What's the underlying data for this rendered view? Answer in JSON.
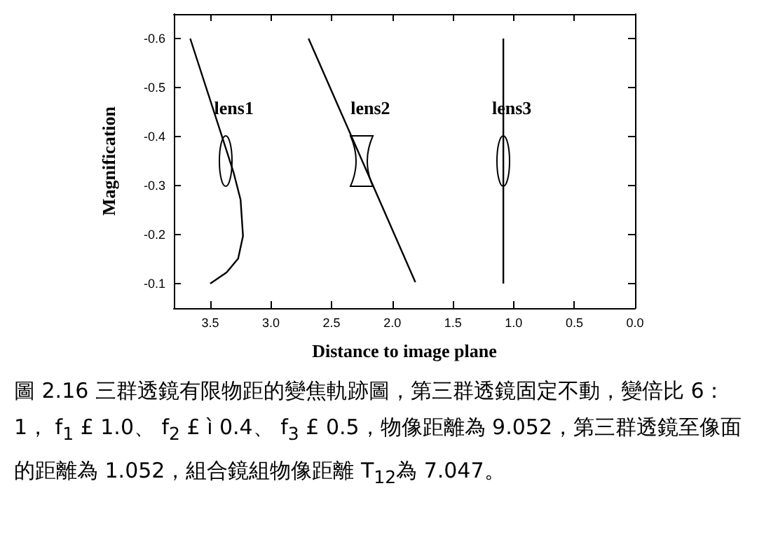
{
  "chart_data": {
    "type": "line",
    "xlabel": "Distance to image plane",
    "ylabel": "Magnification",
    "series": [
      {
        "color": "#000000",
        "x": [
          3.665,
          3.404,
          3.308,
          3.25,
          3.23,
          3.27,
          3.365,
          3.5
        ],
        "values": [
          -0.6,
          -0.401,
          -0.327,
          -0.271,
          -0.197,
          -0.151,
          -0.123,
          -0.1
        ]
      },
      {
        "color": "#000000",
        "x": [
          2.69,
          1.81
        ],
        "values": [
          -0.6,
          -0.103
        ]
      },
      {
        "color": "#000000",
        "x": [
          1.085,
          1.085
        ],
        "values": [
          -0.6,
          -0.1
        ]
      }
    ],
    "xlim": [
      3.8,
      0
    ],
    "xticks": [
      {
        "value": 3.5,
        "label": "3.5"
      },
      {
        "value": 3,
        "label": "3.0"
      },
      {
        "value": 2.5,
        "label": "2.5"
      },
      {
        "value": 2,
        "label": "2.0"
      },
      {
        "value": 1.5,
        "label": "1.5"
      },
      {
        "value": 1,
        "label": "1.0"
      },
      {
        "value": 0.5,
        "label": "0.5"
      },
      {
        "value": 0,
        "label": "0.0"
      }
    ],
    "ylim": [
      -0.05,
      -0.65
    ],
    "yticks": [
      -0.1,
      -0.2,
      -0.3,
      -0.4,
      -0.5,
      -0.6
    ],
    "grid": false,
    "marker": "none",
    "line_style": "solid",
    "annotations": [
      "lens1",
      "lens2",
      "lens3",
      "圖 2.16 三群透鏡有限物距的變焦軌跡圖，第三群透鏡固定不動，變倍比 6：1， f$_{1}$ £ 1.0、 f$_{2}$ £ ì 0.4、 f$_{3}$ £ 0.5，物像距離為 9.052，第三群透鏡至像面的距離為 1.052，組合鏡組物像距離 T$_{12}$為 7.047。"
    ]
  }
}
